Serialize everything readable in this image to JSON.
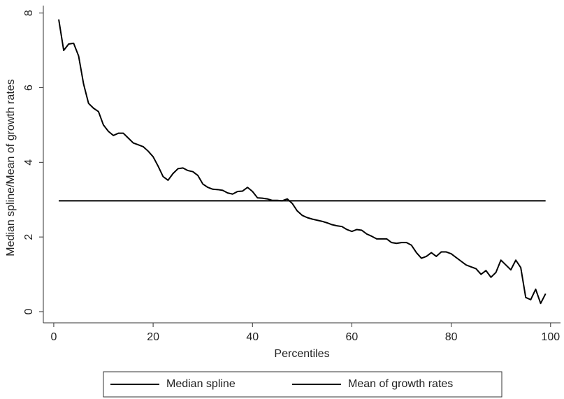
{
  "chart_data": {
    "type": "line",
    "xlabel": "Percentiles",
    "ylabel": "Median spline/Mean of growth rates",
    "xlim": [
      -2.1,
      102
    ],
    "ylim": [
      -0.3,
      8.2
    ],
    "xticks": [
      0,
      20,
      40,
      60,
      80,
      100
    ],
    "yticks": [
      0,
      2,
      4,
      6,
      8
    ],
    "grid": false,
    "legend": "bottom",
    "series": [
      {
        "name": "Median spline",
        "color": "#000000",
        "x": [
          1,
          2,
          3,
          4,
          5,
          6,
          7,
          8,
          9,
          10,
          11,
          12,
          13,
          14,
          15,
          16,
          17,
          18,
          19,
          20,
          21,
          22,
          23,
          24,
          25,
          26,
          27,
          28,
          29,
          30,
          31,
          32,
          33,
          34,
          35,
          36,
          37,
          38,
          39,
          40,
          41,
          42,
          43,
          44,
          45,
          46,
          47,
          48,
          49,
          50,
          51,
          52,
          53,
          54,
          55,
          56,
          57,
          58,
          59,
          60,
          61,
          62,
          63,
          64,
          65,
          66,
          67,
          68,
          69,
          70,
          71,
          72,
          73,
          74,
          75,
          76,
          77,
          78,
          79,
          80,
          81,
          82,
          83,
          84,
          85,
          86,
          87,
          88,
          89,
          90,
          91,
          92,
          93,
          94,
          95,
          96,
          97,
          98,
          99
        ],
        "values": [
          7.83,
          7.0,
          7.17,
          7.19,
          6.85,
          6.1,
          5.58,
          5.45,
          5.36,
          5.0,
          4.83,
          4.72,
          4.78,
          4.78,
          4.65,
          4.52,
          4.47,
          4.42,
          4.3,
          4.15,
          3.9,
          3.62,
          3.52,
          3.7,
          3.83,
          3.85,
          3.78,
          3.75,
          3.65,
          3.42,
          3.33,
          3.28,
          3.27,
          3.25,
          3.18,
          3.15,
          3.22,
          3.23,
          3.33,
          3.22,
          3.05,
          3.04,
          3.02,
          2.98,
          2.98,
          2.97,
          3.02,
          2.9,
          2.7,
          2.58,
          2.52,
          2.48,
          2.45,
          2.42,
          2.38,
          2.33,
          2.3,
          2.28,
          2.2,
          2.15,
          2.2,
          2.18,
          2.08,
          2.02,
          1.95,
          1.95,
          1.95,
          1.85,
          1.83,
          1.85,
          1.85,
          1.78,
          1.58,
          1.43,
          1.48,
          1.58,
          1.48,
          1.6,
          1.6,
          1.55,
          1.45,
          1.35,
          1.25,
          1.2,
          1.15,
          1.0,
          1.1,
          0.92,
          1.05,
          1.38,
          1.25,
          1.12,
          1.38,
          1.18,
          0.38,
          0.32,
          0.6,
          0.22,
          0.48
        ]
      },
      {
        "name": "Mean of growth rates",
        "color": "#000000",
        "x": [
          1,
          99
        ],
        "values": [
          2.97,
          2.97
        ]
      }
    ]
  }
}
